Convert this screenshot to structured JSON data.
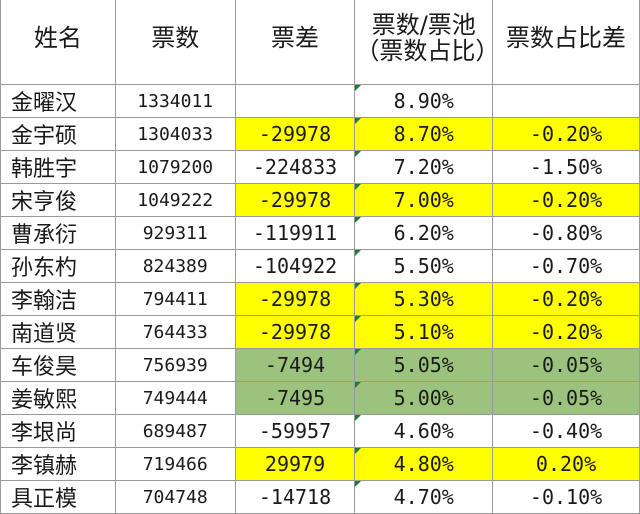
{
  "headers": {
    "name": "姓名",
    "votes": "票数",
    "diff": "票差",
    "pct": "票数/票池（票数占比）",
    "pct_diff": "票数占比差"
  },
  "highlight_colors": {
    "yellow": "#ffff00",
    "green": "#9bc37e"
  },
  "rows": [
    {
      "name": "金曜汉",
      "votes": "1334011",
      "diff": "",
      "pct": "8.90%",
      "pct_diff": "",
      "hl": ""
    },
    {
      "name": "金宇硕",
      "votes": "1304033",
      "diff": "-29978",
      "pct": "8.70%",
      "pct_diff": "-0.20%",
      "hl": "yellow"
    },
    {
      "name": "韩胜宇",
      "votes": "1079200",
      "diff": "-224833",
      "pct": "7.20%",
      "pct_diff": "-1.50%",
      "hl": ""
    },
    {
      "name": "宋亨俊",
      "votes": "1049222",
      "diff": "-29978",
      "pct": "7.00%",
      "pct_diff": "-0.20%",
      "hl": "yellow"
    },
    {
      "name": "曹承衍",
      "votes": "929311",
      "diff": "-119911",
      "pct": "6.20%",
      "pct_diff": "-0.80%",
      "hl": ""
    },
    {
      "name": "孙东杓",
      "votes": "824389",
      "diff": "-104922",
      "pct": "5.50%",
      "pct_diff": "-0.70%",
      "hl": ""
    },
    {
      "name": "李翰洁",
      "votes": "794411",
      "diff": "-29978",
      "pct": "5.30%",
      "pct_diff": "-0.20%",
      "hl": "yellow"
    },
    {
      "name": "南道贤",
      "votes": "764433",
      "diff": "-29978",
      "pct": "5.10%",
      "pct_diff": "-0.20%",
      "hl": "yellow"
    },
    {
      "name": "车俊昊",
      "votes": "756939",
      "diff": "-7494",
      "pct": "5.05%",
      "pct_diff": "-0.05%",
      "hl": "green"
    },
    {
      "name": "姜敏熙",
      "votes": "749444",
      "diff": "-7495",
      "pct": "5.00%",
      "pct_diff": "-0.05%",
      "hl": "green"
    },
    {
      "name": "李垠尚",
      "votes": "689487",
      "diff": "-59957",
      "pct": "4.60%",
      "pct_diff": "-0.40%",
      "hl": ""
    },
    {
      "name": "李镇赫",
      "votes": "719466",
      "diff": "29979",
      "pct": "4.80%",
      "pct_diff": "0.20%",
      "hl": "yellow"
    },
    {
      "name": "具正模",
      "votes": "704748",
      "diff": "-14718",
      "pct": "4.70%",
      "pct_diff": "-0.10%",
      "hl": ""
    }
  ]
}
